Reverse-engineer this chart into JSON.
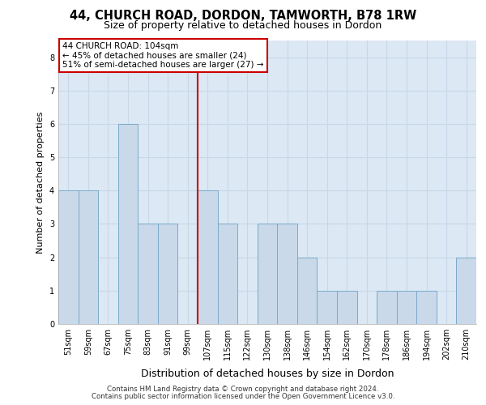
{
  "title_line1": "44, CHURCH ROAD, DORDON, TAMWORTH, B78 1RW",
  "title_line2": "Size of property relative to detached houses in Dordon",
  "xlabel": "Distribution of detached houses by size in Dordon",
  "ylabel": "Number of detached properties",
  "footnote1": "Contains HM Land Registry data © Crown copyright and database right 2024.",
  "footnote2": "Contains public sector information licensed under the Open Government Licence v3.0.",
  "bins": [
    "51sqm",
    "59sqm",
    "67sqm",
    "75sqm",
    "83sqm",
    "91sqm",
    "99sqm",
    "107sqm",
    "115sqm",
    "122sqm",
    "130sqm",
    "138sqm",
    "146sqm",
    "154sqm",
    "162sqm",
    "170sqm",
    "178sqm",
    "186sqm",
    "194sqm",
    "202sqm",
    "210sqm"
  ],
  "bar_values": [
    4,
    4,
    0,
    6,
    3,
    3,
    0,
    4,
    3,
    0,
    3,
    3,
    2,
    1,
    1,
    0,
    1,
    1,
    1,
    0,
    2
  ],
  "bar_color": "#c9d9ea",
  "bar_edge_color": "#7aaac8",
  "subject_line_color": "#cc0000",
  "annotation_line1": "44 CHURCH ROAD: 104sqm",
  "annotation_line2": "← 45% of detached houses are smaller (24)",
  "annotation_line3": "51% of semi-detached houses are larger (27) →",
  "annotation_box_color": "#cc0000",
  "annotation_box_fill": "#ffffff",
  "ylim_max": 8.5,
  "yticks": [
    0,
    1,
    2,
    3,
    4,
    5,
    6,
    7,
    8
  ],
  "grid_color": "#c8d8e8",
  "bg_color": "#dce8f4",
  "fig_bg": "#ffffff"
}
